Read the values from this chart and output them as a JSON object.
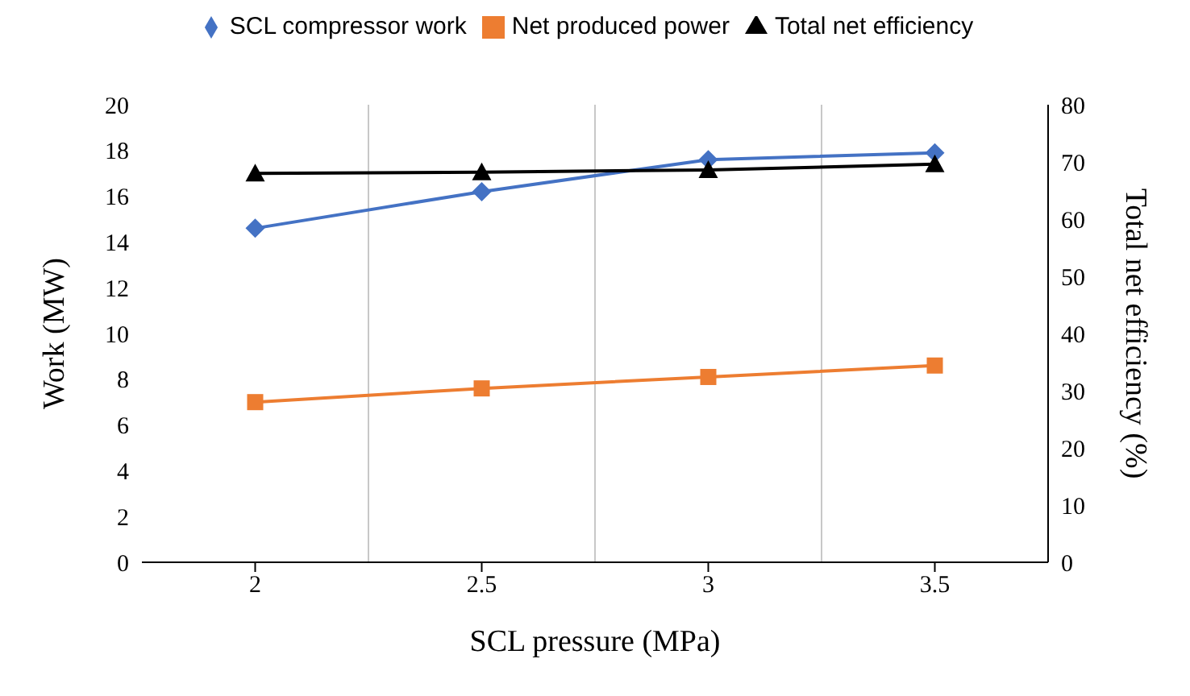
{
  "chart_data": {
    "type": "line",
    "xlabel": "SCL pressure (MPa)",
    "ylabel": "Work (MW)",
    "y2label": "Total net efficiency  (%)",
    "categories": [
      "2",
      "2.5",
      "3",
      "3.5"
    ],
    "series": [
      {
        "name": "SCL compressor work",
        "color": "#4472c4",
        "marker": "diamond",
        "values": [
          14.6,
          16.2,
          17.6,
          17.9
        ]
      },
      {
        "name": "Net produced power",
        "color": "#ed7d31",
        "marker": "square",
        "values": [
          7.0,
          7.6,
          8.1,
          8.6
        ]
      },
      {
        "name": "Total net efficiency",
        "color": "#000000",
        "marker": "triangle",
        "axis": "y2",
        "values": [
          68.0,
          68.2,
          68.6,
          69.6
        ]
      }
    ],
    "ylim": [
      0,
      20
    ],
    "yticks": [
      0,
      2,
      4,
      6,
      8,
      10,
      12,
      14,
      16,
      18,
      20
    ],
    "y2lim": [
      0,
      80
    ],
    "y2ticks": [
      0,
      10,
      20,
      30,
      40,
      50,
      60,
      70,
      80
    ],
    "grid": "x",
    "legend": "top"
  }
}
